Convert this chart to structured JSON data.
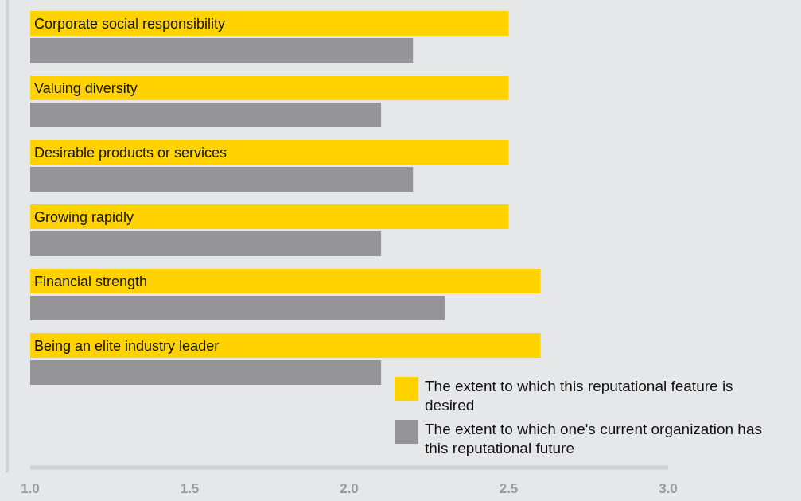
{
  "chart_data": {
    "type": "bar",
    "orientation": "horizontal",
    "categories": [
      "Corporate social responsibility",
      "Valuing diversity",
      "Desirable products or services",
      "Growing rapidly",
      "Financial strength",
      "Being an elite industry leader"
    ],
    "series": [
      {
        "name": "The extent to which this reputational feature is desired",
        "color": "#ffd200",
        "values": [
          2.5,
          2.5,
          2.5,
          2.5,
          2.6,
          2.6
        ]
      },
      {
        "name": "The extent to which one's current organization has this reputational future",
        "color": "#959598",
        "values": [
          2.2,
          2.1,
          2.2,
          2.1,
          2.3,
          2.1
        ]
      }
    ],
    "xlim": [
      1,
      3
    ],
    "xticks": [
      {
        "value": 1,
        "label": "1.0"
      },
      {
        "value": 1.5,
        "label": "1.5"
      },
      {
        "value": 2,
        "label": "2.0"
      },
      {
        "value": 2.5,
        "label": "2.5"
      },
      {
        "value": 3,
        "label": "3.0"
      }
    ],
    "grid": false,
    "legend": "bottom right"
  }
}
